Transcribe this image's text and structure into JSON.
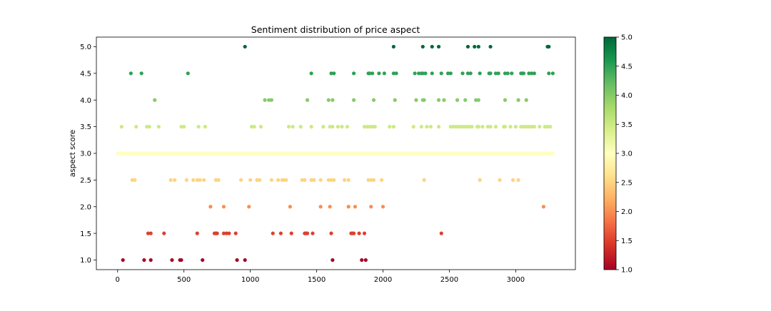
{
  "chart_data": {
    "type": "scatter",
    "title": "Sentiment distribution of price aspect",
    "xlabel": "",
    "ylabel": "aspect score",
    "xlim": [
      -160,
      3450
    ],
    "ylim": [
      0.82,
      5.18
    ],
    "xticks": [
      0,
      500,
      1000,
      1500,
      2000,
      2500,
      3000
    ],
    "yticks": [
      1.0,
      1.5,
      2.0,
      2.5,
      3.0,
      3.5,
      4.0,
      4.5,
      5.0
    ],
    "grid": false,
    "legend": "none",
    "colorbar": {
      "colormap": "RdYlGn",
      "range": [
        1.0,
        5.0
      ],
      "ticks": [
        1.0,
        1.5,
        2.0,
        2.5,
        3.0,
        3.5,
        4.0,
        4.5,
        5.0
      ]
    },
    "series": [
      {
        "y": 5.0,
        "x": [
          960,
          2080,
          2300,
          2370,
          2420,
          2640,
          2690,
          2720,
          2810,
          3240,
          3250
        ]
      },
      {
        "y": 4.5,
        "x": [
          100,
          180,
          530,
          1460,
          1610,
          1630,
          1780,
          1890,
          1900,
          1920,
          1970,
          2010,
          2080,
          2100,
          2240,
          2270,
          2290,
          2300,
          2320,
          2370,
          2440,
          2490,
          2510,
          2600,
          2640,
          2660,
          2730,
          2800,
          2810,
          2850,
          2870,
          2920,
          2940,
          2970,
          3040,
          3050,
          3060,
          3100,
          3120,
          3140,
          3250,
          3280
        ]
      },
      {
        "y": 4.0,
        "x": [
          280,
          1110,
          1140,
          1160,
          1430,
          1590,
          1620,
          1780,
          1930,
          2090,
          2250,
          2300,
          2310,
          2420,
          2460,
          2560,
          2620,
          2700,
          2720,
          2920,
          3020,
          3080
        ]
      },
      {
        "y": 3.5,
        "x": [
          30,
          140,
          220,
          240,
          310,
          480,
          500,
          610,
          660,
          1010,
          1030,
          1080,
          1290,
          1320,
          1380,
          1460,
          1550,
          1600,
          1620,
          1660,
          1690,
          1730,
          1860,
          1880,
          1900,
          1920,
          1940,
          2050,
          2080,
          2230,
          2290,
          2330,
          2360,
          2420,
          2510,
          2530,
          2550,
          2570,
          2590,
          2610,
          2630,
          2650,
          2670,
          2710,
          2720,
          2750,
          2790,
          2810,
          2850,
          2910,
          2920,
          2960,
          3000,
          3040,
          3060,
          3080,
          3100,
          3120,
          3140,
          3180,
          3220,
          3240,
          3260
        ]
      },
      {
        "y": 2.5,
        "x": [
          110,
          130,
          400,
          430,
          520,
          570,
          600,
          620,
          650,
          740,
          760,
          930,
          1000,
          1050,
          1070,
          1160,
          1210,
          1240,
          1250,
          1270,
          1390,
          1410,
          1460,
          1480,
          1530,
          1590,
          1610,
          1630,
          1710,
          1740,
          1890,
          1910,
          1930,
          1990,
          2310,
          2730,
          2880,
          2980,
          3020
        ]
      },
      {
        "y": 3.0,
        "x_range": [
          0,
          3280
        ]
      },
      {
        "y": 2.0,
        "x": [
          700,
          800,
          990,
          1300,
          1530,
          1600,
          1740,
          1790,
          1910,
          2000,
          3210
        ]
      },
      {
        "y": 1.5,
        "x": [
          230,
          250,
          350,
          600,
          730,
          740,
          750,
          800,
          820,
          840,
          890,
          1170,
          1230,
          1310,
          1410,
          1420,
          1430,
          1470,
          1610,
          1760,
          1770,
          1780,
          1820,
          1860,
          2440
        ]
      },
      {
        "y": 1.0,
        "x": [
          40,
          200,
          250,
          410,
          470,
          480,
          640,
          900,
          960,
          1620,
          1840,
          1870
        ]
      }
    ]
  }
}
